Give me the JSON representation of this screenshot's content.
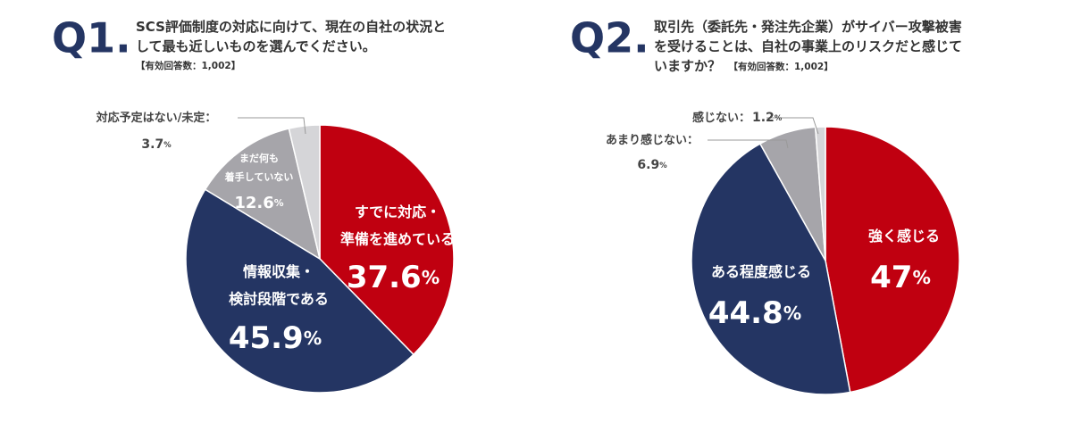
{
  "chart_data": [
    {
      "type": "pie",
      "label": "Q1.",
      "title": "SCS評価制度の対応に向けて、現在の自社の状況と\nして最も近しいものを選んでください。",
      "note": "【有効回答数：1,002】",
      "categories": [
        "すでに対応・\n準備を進めている",
        "情報収集・\n検討段階である",
        "まだ何も\n着手していない",
        "対応予定はない/未定："
      ],
      "values": [
        37.6,
        45.9,
        12.6,
        3.7
      ],
      "value_labels": [
        "37.6%",
        "45.9%",
        "12.6%",
        "3.7%"
      ],
      "colors": [
        "#c00010",
        "#243563",
        "#a6a5aa",
        "#d5d5d8"
      ]
    },
    {
      "type": "pie",
      "label": "Q2.",
      "title": "取引先（委託先・発注先企業）がサイバー攻撃被害\nを受けることは、自社の事業上のリスクだと感じて\nいますか？",
      "note": "【有効回答数：1,002】",
      "categories": [
        "強く感じる",
        "ある程度感じる",
        "あまり感じない：",
        "感じない："
      ],
      "values": [
        47,
        44.8,
        6.9,
        1.2
      ],
      "value_labels": [
        "47%",
        "44.8%",
        "6.9%",
        "1.2%"
      ],
      "colors": [
        "#c00010",
        "#243563",
        "#a6a5aa",
        "#d5d5d8"
      ]
    }
  ]
}
